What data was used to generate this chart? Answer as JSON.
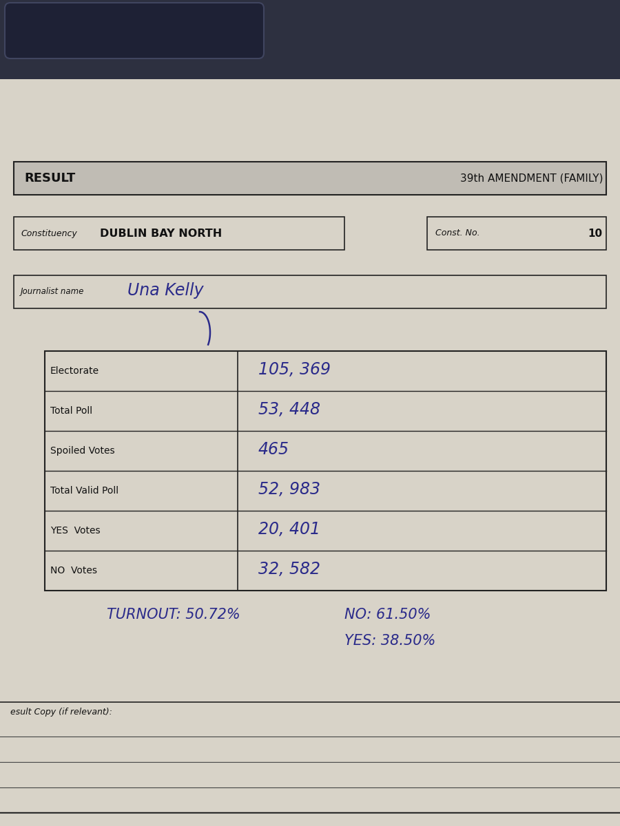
{
  "bg_color": "#c8c3ba",
  "paper_color": "#d8d3c8",
  "paper_color2": "#ccc8be",
  "dark_bar_color": "#b8b4ac",
  "header_bar_color": "#c0bcb4",
  "border_color": "#222222",
  "title_left": "RESULT",
  "title_right": "39th AMENDMENT (FAMILY)",
  "constituency_label": "Constituency",
  "constituency_value": "DUBLIN BAY NORTH",
  "const_no_label": "Const. No.",
  "const_no_value": "10",
  "journalist_label": "Journalist name",
  "journalist_name": "Una Kelly",
  "table_rows": [
    {
      "label": "Electorate",
      "value": "105, 369"
    },
    {
      "label": "Total Poll",
      "value": "53, 448"
    },
    {
      "label": "Spoiled Votes",
      "value": "465"
    },
    {
      "label": "Total Valid Poll",
      "value": "52, 983"
    },
    {
      "label": "YES  Votes",
      "value": "20, 401"
    },
    {
      "label": "NO  Votes",
      "value": "32, 582"
    }
  ],
  "turnout_text": "TURNOUT: 50.72%",
  "no_pct_text": "NO: 61.50%",
  "yes_pct_text": "YES: 38.50%",
  "result_copy_label": "esult Copy (if relevant):",
  "handwriting_color": "#2a2a8a",
  "printed_text_color": "#111111",
  "line_color": "#444444",
  "top_bar_color": "#2d3040",
  "notch_color": "#1e2135",
  "shadow_color": "#b0aba2"
}
